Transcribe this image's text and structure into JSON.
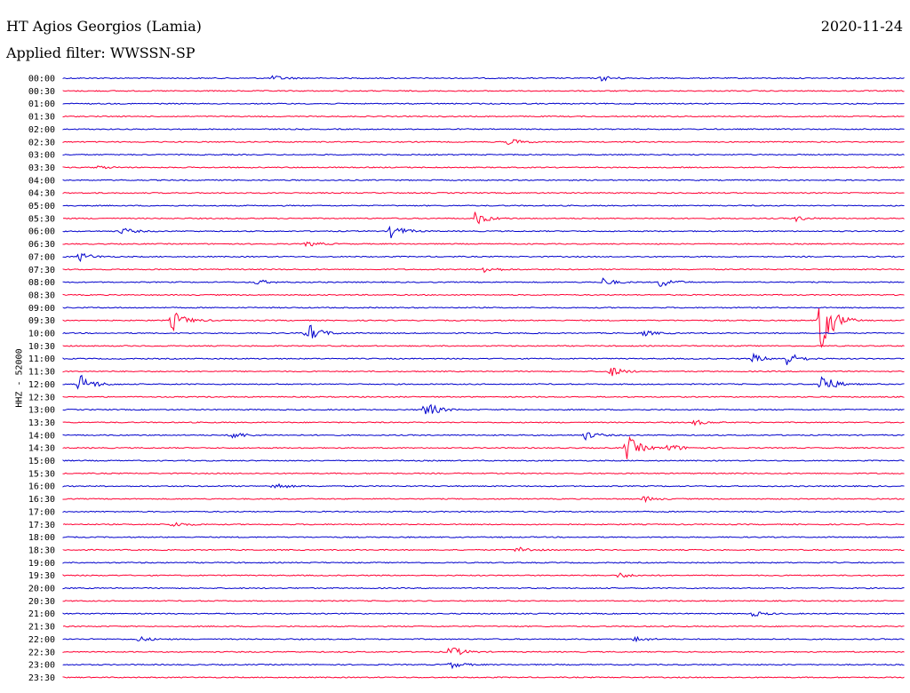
{
  "header": {
    "station": "HT Agios Georgios (Lamia)",
    "date": "2020-11-24",
    "filter_label": "Applied filter: WWSSN-SP",
    "channel_label": "HHZ - 52000"
  },
  "colors": {
    "even_row": "#0000cc",
    "odd_row": "#ff0033"
  },
  "chart_data": {
    "type": "line",
    "title": "HT Agios Georgios (Lamia)",
    "subtitle": "Applied filter: WWSSN-SP",
    "ylabel": "HHZ - 52000",
    "xlabel": "",
    "row_labels": [
      "00:00",
      "00:30",
      "01:00",
      "01:30",
      "02:00",
      "02:30",
      "03:00",
      "03:30",
      "04:00",
      "04:30",
      "05:00",
      "05:30",
      "06:00",
      "06:30",
      "07:00",
      "07:30",
      "08:00",
      "08:30",
      "09:00",
      "09:30",
      "10:00",
      "10:30",
      "11:00",
      "11:30",
      "12:00",
      "12:30",
      "13:00",
      "13:30",
      "14:00",
      "14:30",
      "15:00",
      "15:30",
      "16:00",
      "16:30",
      "17:00",
      "17:30",
      "18:00",
      "18:30",
      "19:00",
      "19:30",
      "20:00",
      "20:30",
      "21:00",
      "21:30",
      "22:00",
      "22:30",
      "23:00",
      "23:30"
    ],
    "events": [
      {
        "row": "00:00",
        "x": 0.25,
        "amp": 3
      },
      {
        "row": "00:00",
        "x": 0.64,
        "amp": 3
      },
      {
        "row": "02:30",
        "x": 0.53,
        "amp": 4
      },
      {
        "row": "03:30",
        "x": 0.04,
        "amp": 2
      },
      {
        "row": "05:30",
        "x": 0.49,
        "amp": 8
      },
      {
        "row": "05:30",
        "x": 0.87,
        "amp": 3
      },
      {
        "row": "06:00",
        "x": 0.07,
        "amp": 4
      },
      {
        "row": "06:00",
        "x": 0.39,
        "amp": 8
      },
      {
        "row": "06:30",
        "x": 0.29,
        "amp": 3
      },
      {
        "row": "07:00",
        "x": 0.02,
        "amp": 5
      },
      {
        "row": "07:30",
        "x": 0.5,
        "amp": 4
      },
      {
        "row": "08:00",
        "x": 0.23,
        "amp": 3
      },
      {
        "row": "08:00",
        "x": 0.64,
        "amp": 5
      },
      {
        "row": "08:00",
        "x": 0.71,
        "amp": 6
      },
      {
        "row": "09:30",
        "x": 0.13,
        "amp": 12
      },
      {
        "row": "09:30",
        "x": 0.9,
        "amp": 40
      },
      {
        "row": "10:00",
        "x": 0.29,
        "amp": 12
      },
      {
        "row": "10:00",
        "x": 0.69,
        "amp": 3
      },
      {
        "row": "11:00",
        "x": 0.82,
        "amp": 5
      },
      {
        "row": "11:00",
        "x": 0.86,
        "amp": 8
      },
      {
        "row": "11:30",
        "x": 0.65,
        "amp": 6
      },
      {
        "row": "12:00",
        "x": 0.02,
        "amp": 12
      },
      {
        "row": "12:00",
        "x": 0.9,
        "amp": 14
      },
      {
        "row": "13:00",
        "x": 0.43,
        "amp": 10
      },
      {
        "row": "13:30",
        "x": 0.75,
        "amp": 3
      },
      {
        "row": "14:00",
        "x": 0.2,
        "amp": 5
      },
      {
        "row": "14:00",
        "x": 0.62,
        "amp": 5
      },
      {
        "row": "14:30",
        "x": 0.67,
        "amp": 15
      },
      {
        "row": "14:30",
        "x": 0.72,
        "amp": 5
      },
      {
        "row": "16:00",
        "x": 0.25,
        "amp": 4
      },
      {
        "row": "16:30",
        "x": 0.69,
        "amp": 3
      },
      {
        "row": "17:30",
        "x": 0.13,
        "amp": 3
      },
      {
        "row": "18:30",
        "x": 0.54,
        "amp": 4
      },
      {
        "row": "19:30",
        "x": 0.66,
        "amp": 3
      },
      {
        "row": "21:00",
        "x": 0.82,
        "amp": 3
      },
      {
        "row": "22:00",
        "x": 0.09,
        "amp": 3
      },
      {
        "row": "22:00",
        "x": 0.68,
        "amp": 3
      },
      {
        "row": "22:30",
        "x": 0.46,
        "amp": 7
      },
      {
        "row": "23:00",
        "x": 0.46,
        "amp": 4
      }
    ]
  }
}
